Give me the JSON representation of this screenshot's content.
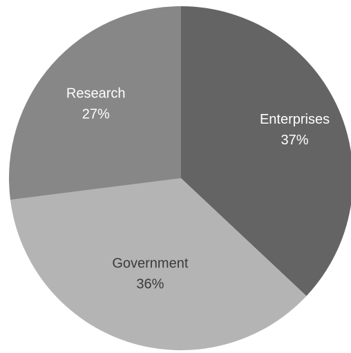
{
  "chart_data": {
    "type": "pie",
    "title": "",
    "start_angle_deg": 0,
    "direction": "clockwise",
    "slices": [
      {
        "label": "Enterprises",
        "value": 37,
        "value_label": "37%",
        "color": "#646464",
        "text_color": "#ffffff"
      },
      {
        "label": "Government",
        "value": 36,
        "value_label": "36%",
        "color": "#b4b4b4",
        "text_color": "#3a3a3a"
      },
      {
        "label": "Research",
        "value": 27,
        "value_label": "27%",
        "color": "#878787",
        "text_color": "#ffffff"
      }
    ]
  }
}
